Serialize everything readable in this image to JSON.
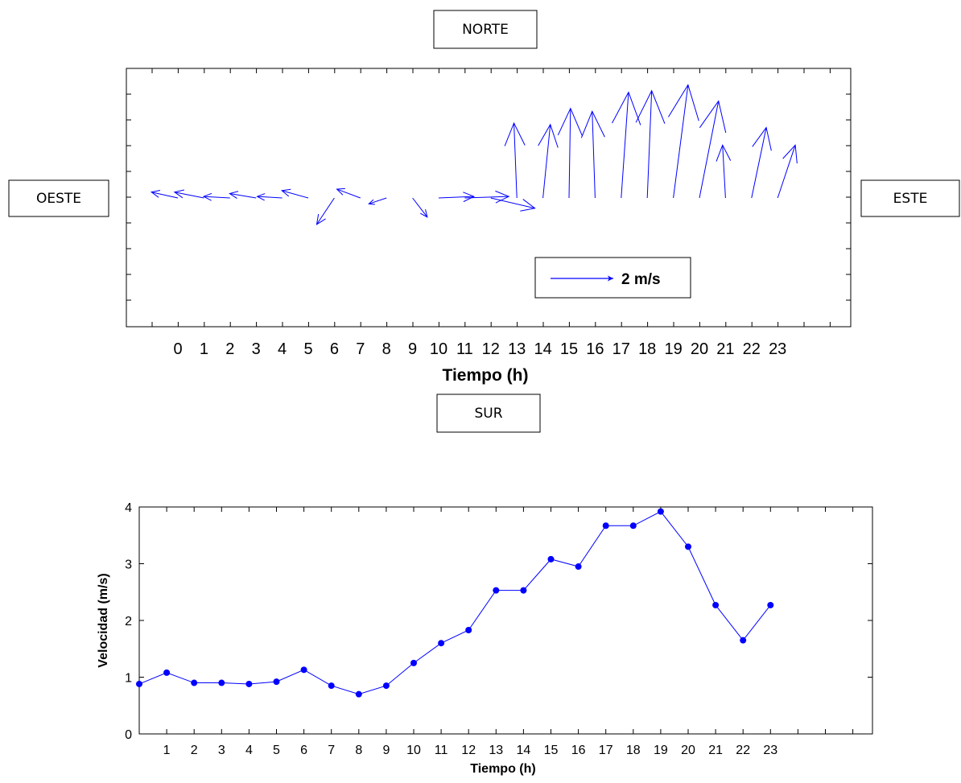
{
  "compass": {
    "north": "NORTE",
    "south": "SUR",
    "west": "OESTE",
    "east": "ESTE"
  },
  "series_color": "#0000ff",
  "chart_data": [
    {
      "type": "quiver",
      "xlabel": "Tiempo (h)",
      "x": [
        0,
        1,
        2,
        3,
        4,
        5,
        6,
        7,
        8,
        9,
        10,
        11,
        12,
        13,
        14,
        15,
        16,
        17,
        18,
        19,
        20,
        21,
        22,
        23
      ],
      "u": [
        -0.9,
        -1.0,
        -0.9,
        -0.9,
        -0.85,
        -0.9,
        -0.6,
        -0.8,
        -0.6,
        0.5,
        1.2,
        1.5,
        1.5,
        -0.1,
        0.25,
        0.05,
        -0.1,
        0.25,
        0.15,
        0.5,
        0.65,
        -0.1,
        0.5,
        0.6
      ],
      "v": [
        0.2,
        0.2,
        0.05,
        0.15,
        0.05,
        0.25,
        -0.9,
        0.3,
        -0.2,
        -0.65,
        0.05,
        0.05,
        -0.35,
        2.55,
        2.5,
        3.05,
        2.95,
        3.6,
        3.65,
        3.85,
        3.3,
        1.8,
        2.4,
        1.8
      ],
      "x_ticks": [
        "0",
        "1",
        "2",
        "3",
        "4",
        "5",
        "6",
        "7",
        "8",
        "9",
        "10",
        "11",
        "12",
        "13",
        "14",
        "15",
        "16",
        "17",
        "18",
        "19",
        "20",
        "21",
        "22",
        "23"
      ],
      "legend": {
        "label": "2 m/s",
        "value": 2
      }
    },
    {
      "type": "line",
      "xlabel": "Tiempo (h)",
      "ylabel": "Velocidad (m/s)",
      "x": [
        0,
        1,
        2,
        3,
        4,
        5,
        6,
        7,
        8,
        9,
        10,
        11,
        12,
        13,
        14,
        15,
        16,
        17,
        18,
        19,
        20,
        21,
        22,
        23
      ],
      "values": [
        0.88,
        1.08,
        0.9,
        0.9,
        0.88,
        0.92,
        1.13,
        0.85,
        0.7,
        0.85,
        1.25,
        1.6,
        1.83,
        2.53,
        2.53,
        3.08,
        2.95,
        3.67,
        3.67,
        3.92,
        3.3,
        2.27,
        1.65,
        2.27
      ],
      "x_ticks": [
        "1",
        "2",
        "3",
        "4",
        "5",
        "6",
        "7",
        "8",
        "9",
        "10",
        "11",
        "12",
        "13",
        "14",
        "15",
        "16",
        "17",
        "18",
        "19",
        "20",
        "21",
        "22",
        "23"
      ],
      "y_ticks": [
        "0",
        "1",
        "2",
        "3",
        "4"
      ],
      "ylim": [
        0,
        4
      ]
    }
  ]
}
